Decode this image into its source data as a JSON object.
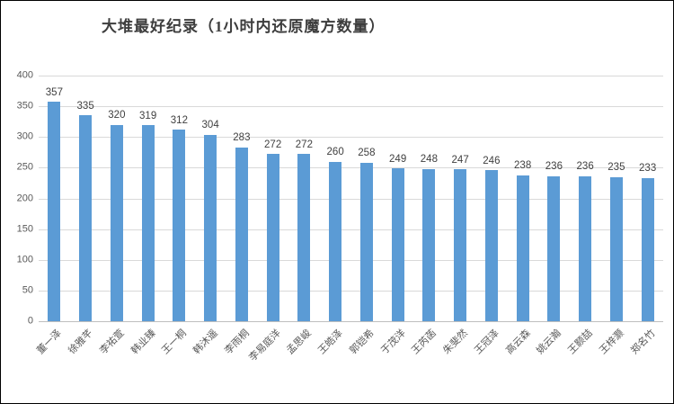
{
  "frame": {
    "background": "#ffffff",
    "border_color": "#000000"
  },
  "chart_data": {
    "type": "bar",
    "title": "大堆最好纪录（1小时内还原魔方数量）",
    "categories": [
      "董一泽",
      "徐雅芊",
      "李祐萱",
      "韩业臻",
      "王一桐",
      "韩沐遥",
      "李雨桐",
      "李易庭洋",
      "孟思峻",
      "王皓泽",
      "郭铠希",
      "于茂洋",
      "王芮菡",
      "朱斐然",
      "王冠泽",
      "高云森",
      "姚云瀚",
      "王颢喆",
      "王梓灏",
      "郑名竹"
    ],
    "values": [
      357,
      335,
      320,
      319,
      312,
      304,
      283,
      272,
      272,
      260,
      258,
      249,
      248,
      247,
      246,
      238,
      236,
      236,
      235,
      233
    ],
    "xlabel": "",
    "ylabel": "",
    "ylim": [
      0,
      400
    ],
    "yticks": [
      0,
      50,
      100,
      150,
      200,
      250,
      300,
      350,
      400
    ],
    "grid": "horizontal",
    "legend": "none",
    "data_labels": "outside-end",
    "category_label_rotation_deg": 45,
    "colors": {
      "bar": "#5b9bd5",
      "gridline": "#d9d9d9",
      "axis_line": "#bfbfbf",
      "tick_label": "#595959",
      "value_label": "#404040",
      "title": "#3d3d3d"
    }
  }
}
